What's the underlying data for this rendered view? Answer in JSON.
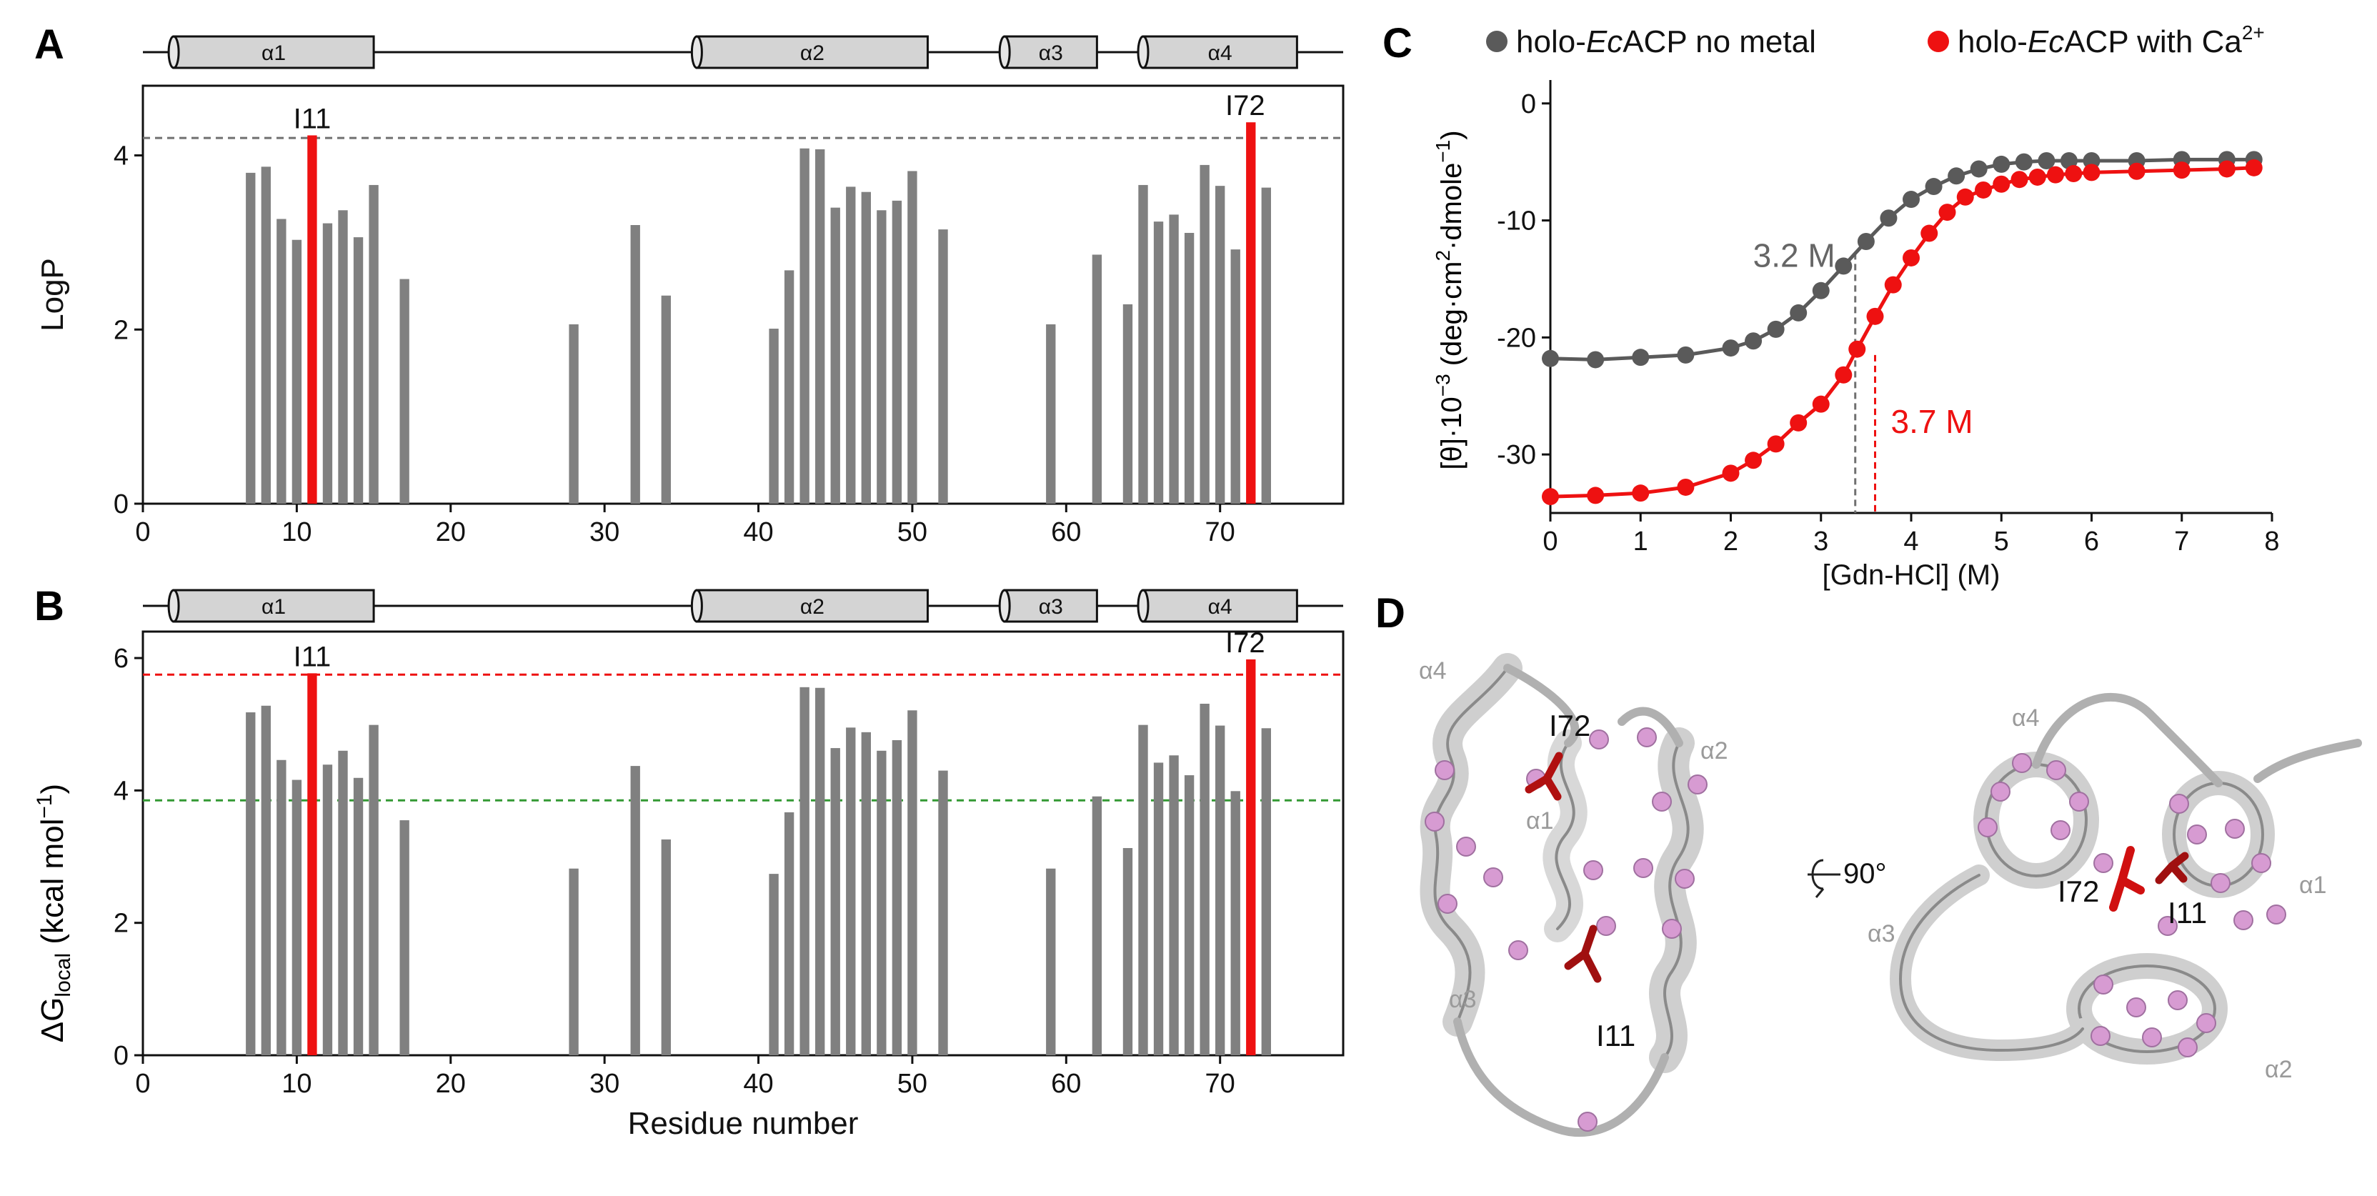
{
  "panel_labels": {
    "a": "A",
    "b": "B",
    "c": "C",
    "d": "D"
  },
  "colors": {
    "grey_bar": "#808080",
    "red": "#ee1111",
    "dark_red": "#a01010",
    "green_dash": "#339933",
    "grey_dash": "#707070",
    "grey_series": "#5a5a5a",
    "red_series": "#ee1111",
    "sphere": "#d79bd2",
    "ribbon": "#cfcfcf"
  },
  "helices": [
    {
      "label": "α1",
      "start": 2,
      "end": 15
    },
    {
      "label": "α2",
      "start": 36,
      "end": 51
    },
    {
      "label": "α3",
      "start": 56,
      "end": 62
    },
    {
      "label": "α4",
      "start": 65,
      "end": 75
    }
  ],
  "chart_data": [
    {
      "id": "A",
      "type": "bar",
      "title": "",
      "xlabel": "",
      "ylabel": "LogP",
      "xlim": [
        0,
        78
      ],
      "ylim": [
        0,
        4.8
      ],
      "xticks": [
        0,
        10,
        20,
        30,
        40,
        50,
        60,
        70
      ],
      "yticks": [
        0,
        2,
        4
      ],
      "reference_line": {
        "y": 4.2,
        "color": "grey",
        "style": "dashed"
      },
      "highlight": [
        11,
        72
      ],
      "highlight_labels": [
        "I11",
        "I72"
      ],
      "residues": [
        7,
        8,
        9,
        10,
        11,
        12,
        13,
        14,
        15,
        17,
        28,
        32,
        34,
        41,
        42,
        43,
        44,
        45,
        46,
        47,
        48,
        49,
        50,
        52,
        59,
        62,
        64,
        65,
        66,
        67,
        68,
        69,
        70,
        71,
        72,
        73
      ],
      "values": [
        3.8,
        3.87,
        3.27,
        3.03,
        4.23,
        3.22,
        3.37,
        3.06,
        3.66,
        2.58,
        2.06,
        3.2,
        2.39,
        2.01,
        2.68,
        4.08,
        4.07,
        3.4,
        3.64,
        3.58,
        3.37,
        3.48,
        3.82,
        3.15,
        2.06,
        2.86,
        2.29,
        3.66,
        3.24,
        3.32,
        3.11,
        3.89,
        3.65,
        2.92,
        4.38,
        3.63
      ]
    },
    {
      "id": "B",
      "type": "bar",
      "title": "",
      "xlabel": "Residue number",
      "ylabel_main": "ΔG",
      "ylabel_sub": "local",
      "ylabel_unit_pre": " (kcal mol",
      "ylabel_unit_sup": "−1",
      "ylabel_unit_post": ")",
      "xlim": [
        0,
        78
      ],
      "ylim": [
        0,
        6.4
      ],
      "xticks": [
        0,
        10,
        20,
        30,
        40,
        50,
        60,
        70
      ],
      "yticks": [
        0,
        2,
        4,
        6
      ],
      "reference_lines": [
        {
          "y": 5.75,
          "color": "red",
          "style": "dashed"
        },
        {
          "y": 3.85,
          "color": "green",
          "style": "dashed"
        }
      ],
      "highlight": [
        11,
        72
      ],
      "highlight_labels": [
        "I11",
        "I72"
      ],
      "residues": [
        7,
        8,
        9,
        10,
        11,
        12,
        13,
        14,
        15,
        17,
        28,
        32,
        34,
        41,
        42,
        43,
        44,
        45,
        46,
        47,
        48,
        49,
        50,
        52,
        59,
        62,
        64,
        65,
        66,
        67,
        68,
        69,
        70,
        71,
        72,
        73
      ],
      "values": [
        5.18,
        5.28,
        4.46,
        4.16,
        5.77,
        4.39,
        4.6,
        4.19,
        4.99,
        3.55,
        2.82,
        4.37,
        3.26,
        2.74,
        3.67,
        5.56,
        5.55,
        4.64,
        4.95,
        4.88,
        4.6,
        4.76,
        5.21,
        4.3,
        2.82,
        3.91,
        3.13,
        4.99,
        4.42,
        4.53,
        4.23,
        5.31,
        4.98,
        3.99,
        5.98,
        4.94
      ]
    },
    {
      "id": "C",
      "type": "line",
      "title": "",
      "xlabel": "[Gdn-HCl] (M)",
      "ylabel_a": "[θ]·10",
      "ylabel_b": "−3",
      "ylabel_c": " (deg·cm",
      "ylabel_d": "2",
      "ylabel_e": "·dmole",
      "ylabel_f": "−1",
      "ylabel_g": ")",
      "xlim": [
        0,
        8
      ],
      "ylim": [
        -35,
        2
      ],
      "xticks": [
        0,
        1,
        2,
        3,
        4,
        5,
        6,
        7,
        8
      ],
      "yticks": [
        0,
        -10,
        -20,
        -30
      ],
      "legend_position": "top",
      "series": [
        {
          "name_pre": "holo-",
          "name_italic": "Ec",
          "name_post": "ACP no metal",
          "x": [
            0,
            0.5,
            1,
            1.5,
            2,
            2.25,
            2.5,
            2.75,
            3,
            3.25,
            3.5,
            3.75,
            4,
            4.25,
            4.5,
            4.75,
            5,
            5.25,
            5.5,
            5.75,
            6,
            6.5,
            7,
            7.5,
            7.8
          ],
          "y": [
            -21.8,
            -21.9,
            -21.7,
            -21.5,
            -20.9,
            -20.3,
            -19.3,
            -17.9,
            -16.0,
            -13.9,
            -11.8,
            -9.8,
            -8.2,
            -7.1,
            -6.2,
            -5.6,
            -5.2,
            -5.0,
            -4.9,
            -4.9,
            -4.9,
            -4.9,
            -4.8,
            -4.8,
            -4.8
          ]
        },
        {
          "name_pre": "holo-",
          "name_italic": "Ec",
          "name_post": "ACP with Ca",
          "name_sup": "2+",
          "x": [
            0,
            0.5,
            1,
            1.5,
            2,
            2.25,
            2.5,
            2.75,
            3,
            3.25,
            3.4,
            3.6,
            3.8,
            4,
            4.2,
            4.4,
            4.6,
            4.8,
            5,
            5.2,
            5.4,
            5.6,
            5.8,
            6,
            6.5,
            7,
            7.5,
            7.8
          ],
          "y": [
            -33.6,
            -33.5,
            -33.3,
            -32.8,
            -31.6,
            -30.5,
            -29.1,
            -27.3,
            -25.7,
            -23.2,
            -21.0,
            -18.2,
            -15.5,
            -13.2,
            -11.1,
            -9.3,
            -8.0,
            -7.4,
            -6.9,
            -6.5,
            -6.3,
            -6.1,
            -6.0,
            -5.9,
            -5.8,
            -5.7,
            -5.6,
            -5.5
          ]
        }
      ],
      "midpoints": [
        {
          "label": "3.2 M",
          "x": 3.38,
          "color": "grey"
        },
        {
          "label": "3.7 M",
          "x": 3.6,
          "color": "red"
        }
      ]
    }
  ],
  "structure": {
    "left_labels": [
      "α4",
      "α1",
      "α3",
      "α2",
      "I72",
      "I11"
    ],
    "right_labels": [
      "α4",
      "α1",
      "α3",
      "α2",
      "I72",
      "I11"
    ],
    "rotation_label": "90°"
  }
}
